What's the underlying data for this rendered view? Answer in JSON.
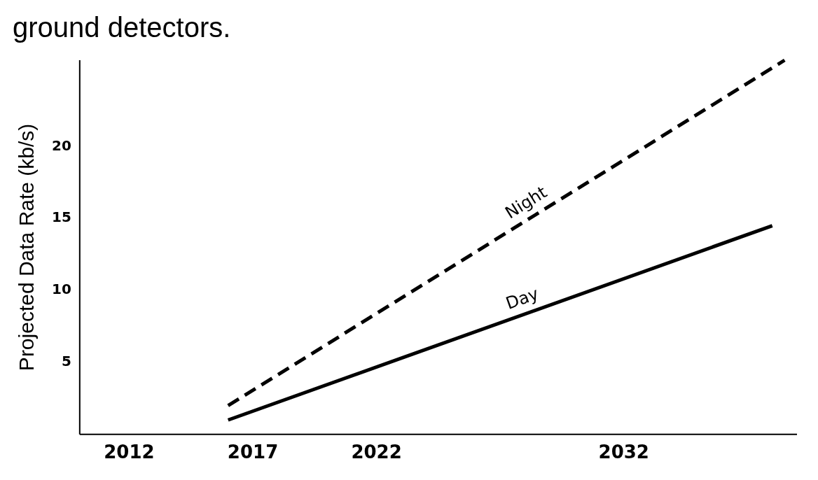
{
  "chart_data": {
    "type": "line",
    "title": "ground detectors.",
    "ylabel": "Projected Data Rate (kb/s)",
    "xlim": [
      2010,
      2039
    ],
    "xticks": [
      2012,
      2017,
      2022,
      2032
    ],
    "ylim": [
      0,
      26
    ],
    "yticks": [
      5,
      10,
      15,
      20
    ],
    "grid": false,
    "legend": false,
    "marker": "none",
    "series": [
      {
        "name": "Night",
        "color": "#000000",
        "line_style": "dashed",
        "x": [
          2016,
          2038.5
        ],
        "values": [
          2,
          26
        ]
      },
      {
        "name": "Day",
        "color": "#000000",
        "line_style": "solid",
        "x": [
          2016,
          2038
        ],
        "values": [
          1,
          14.5
        ]
      }
    ]
  }
}
